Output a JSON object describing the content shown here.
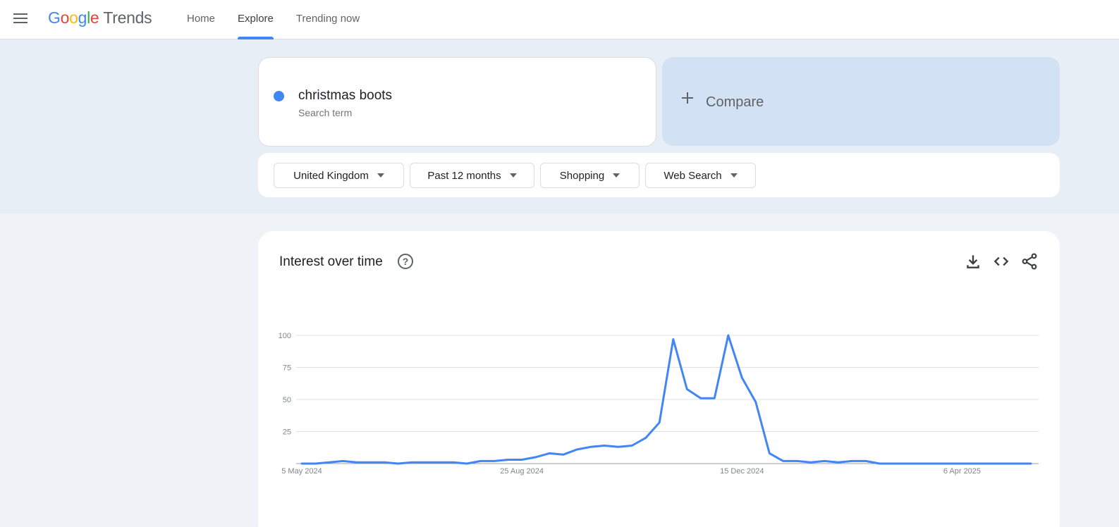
{
  "header": {
    "logo_letters": [
      "G",
      "o",
      "o",
      "g",
      "l",
      "e"
    ],
    "logo_product": "Trends",
    "nav": [
      {
        "label": "Home",
        "active": false
      },
      {
        "label": "Explore",
        "active": true
      },
      {
        "label": "Trending now",
        "active": false
      }
    ]
  },
  "search": {
    "term": "christmas boots",
    "term_type": "Search term",
    "term_color": "#4285f4",
    "compare_label": "Compare"
  },
  "filters": {
    "region": "United Kingdom",
    "period": "Past 12 months",
    "category": "Shopping",
    "property": "Web Search"
  },
  "interest_panel": {
    "title": "Interest over time",
    "icons": [
      "help-icon",
      "download-icon",
      "embed-icon",
      "share-icon"
    ]
  },
  "chart_data": {
    "type": "line",
    "series": [
      {
        "color": "#4285f4",
        "values": [
          0,
          0,
          1,
          2,
          1,
          1,
          1,
          0,
          1,
          1,
          1,
          1,
          0,
          2,
          2,
          3,
          3,
          5,
          8,
          7,
          11,
          13,
          14,
          13,
          14,
          20,
          32,
          97,
          58,
          51,
          51,
          100,
          67,
          48,
          8,
          2,
          2,
          1,
          2,
          1,
          2,
          2,
          0,
          0,
          0,
          0,
          0,
          0,
          0,
          0,
          0,
          0,
          0,
          0
        ]
      }
    ],
    "x_tick_labels": [
      "5 May 2024",
      "25 Aug 2024",
      "15 Dec 2024",
      "6 Apr 2025"
    ],
    "x_tick_indices": [
      0,
      16,
      32,
      48
    ],
    "y_ticks": [
      25,
      50,
      75,
      100
    ],
    "ylim": [
      0,
      100
    ],
    "grid": true
  }
}
